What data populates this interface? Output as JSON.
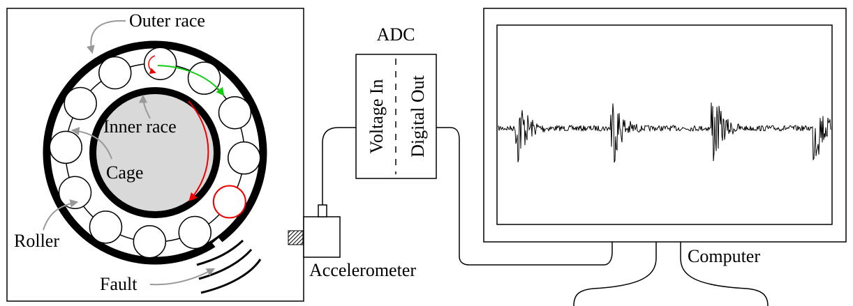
{
  "bearing": {
    "outer_race": "Outer race",
    "inner_race": "Inner race",
    "cage": "Cage",
    "roller": "Roller",
    "fault": "Fault"
  },
  "sensor": {
    "label": "Accelerometer"
  },
  "adc": {
    "title": "ADC",
    "input": "Voltage In",
    "output": "Digital Out"
  },
  "computer": {
    "label": "Computer"
  }
}
